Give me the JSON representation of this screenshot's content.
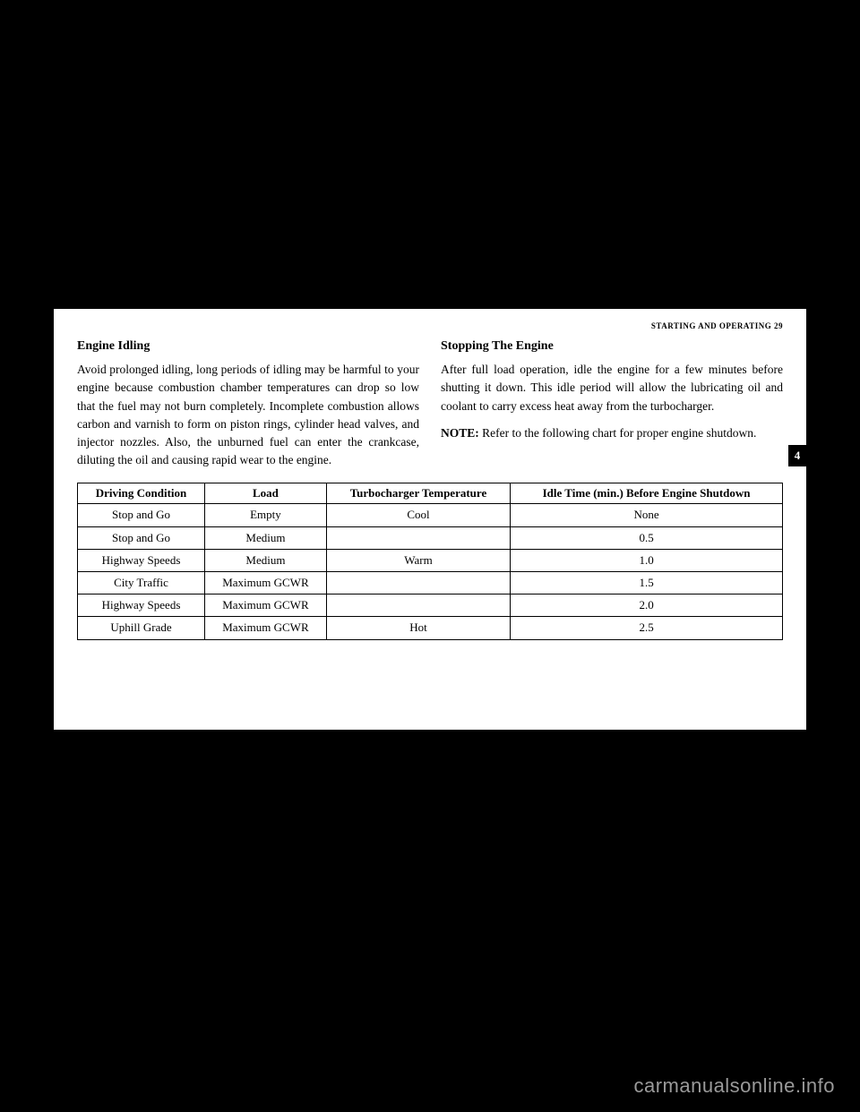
{
  "running_header": "STARTING AND OPERATING  29",
  "tab_marker": "4",
  "left": {
    "heading": "Engine Idling",
    "para1": "Avoid prolonged idling, long periods of idling may be harmful to your engine because combustion chamber temperatures can drop so low that the fuel may not burn completely. Incomplete combustion allows carbon and varnish to form on piston rings, cylinder head valves, and injector nozzles. Also, the unburned fuel can enter the crankcase, diluting the oil and causing rapid wear to the engine."
  },
  "right": {
    "heading": "Stopping The Engine",
    "para1": "After full load operation, idle the engine for a few minutes before shutting it down. This idle period will allow the lubricating oil and coolant to carry excess heat away from the turbocharger.",
    "note_label": "NOTE:",
    "note_text": " Refer to the following chart for proper engine shutdown."
  },
  "table": {
    "headers": [
      "Driving Condition",
      "Load",
      "Turbocharger Temperature",
      "Idle Time (min.) Before Engine Shutdown"
    ],
    "rows": [
      [
        "Stop and Go",
        "Empty",
        "Cool",
        "None"
      ],
      [
        "Stop and Go",
        "Medium",
        "",
        "0.5"
      ],
      [
        "Highway Speeds",
        "Medium",
        "Warm",
        "1.0"
      ],
      [
        "City Traffic",
        "Maximum GCWR",
        "",
        "1.5"
      ],
      [
        "Highway Speeds",
        "Maximum GCWR",
        "",
        "2.0"
      ],
      [
        "Uphill Grade",
        "Maximum GCWR",
        "Hot",
        "2.5"
      ]
    ]
  },
  "watermark": "carmanualsonline.info"
}
